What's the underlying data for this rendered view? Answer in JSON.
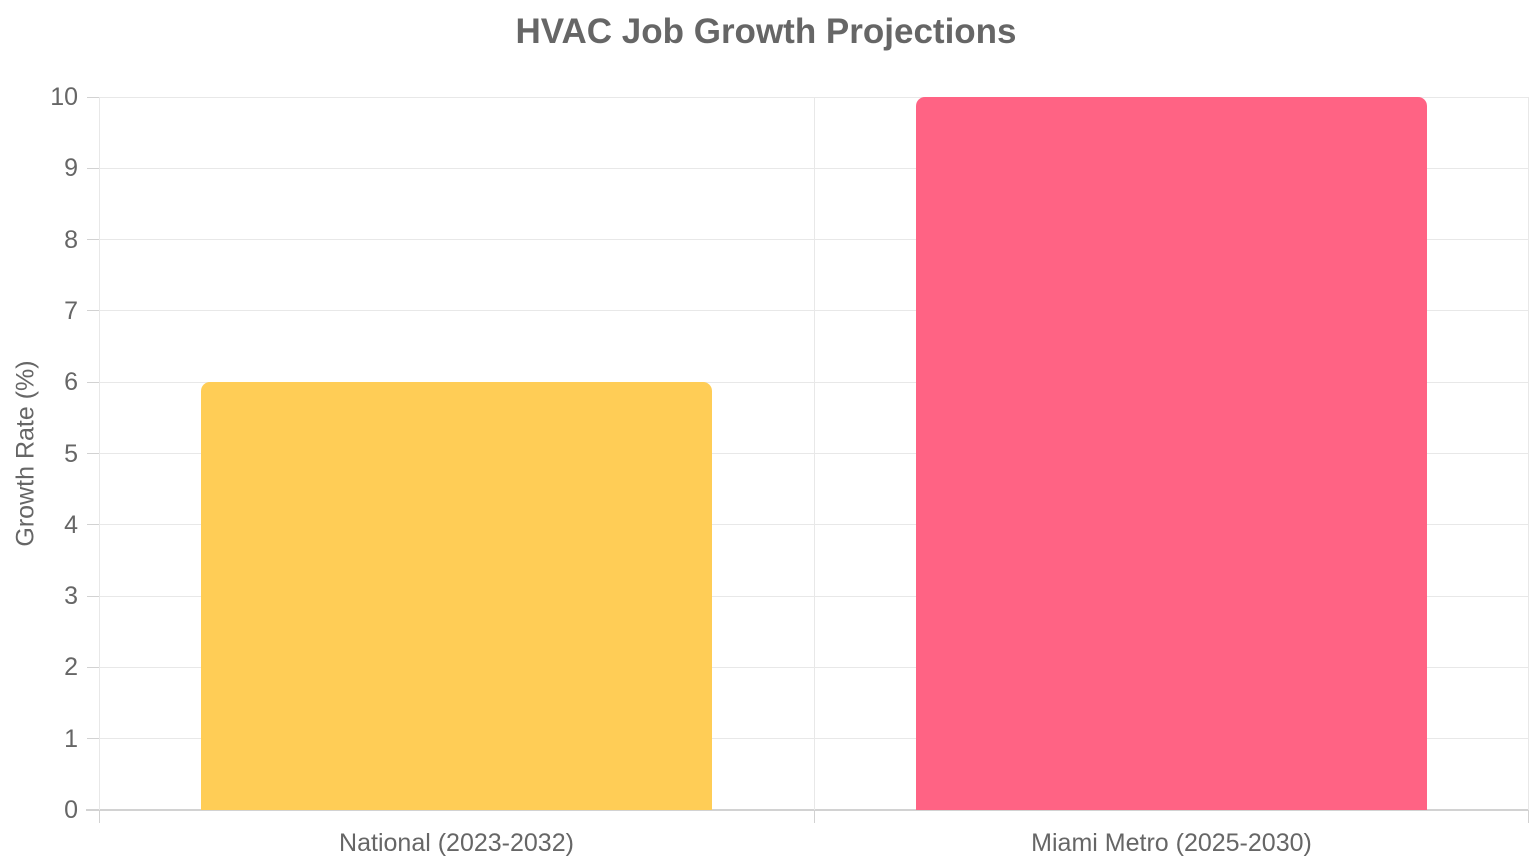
{
  "chart_data": {
    "type": "bar",
    "title": "HVAC Job Growth Projections",
    "categories": [
      "National (2023-2032)",
      "Miami Metro (2025-2030)"
    ],
    "values": [
      6,
      10
    ],
    "bar_colors": [
      "#ffcd56",
      "#ff6384"
    ],
    "xlabel": "",
    "ylabel": "Growth Rate (%)",
    "ylim": [
      0,
      10
    ],
    "yticks": [
      0,
      1,
      2,
      3,
      4,
      5,
      6,
      7,
      8,
      9,
      10
    ],
    "grid": true,
    "legend_position": "none",
    "bar_category_fraction": 0.716
  },
  "colors": {
    "grid": "#e8e8e8",
    "axis": "#d2d2d2",
    "text": "#666666",
    "background": "#ffffff"
  }
}
